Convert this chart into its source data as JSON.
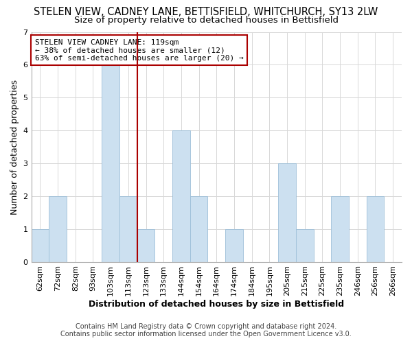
{
  "title": "STELEN VIEW, CADNEY LANE, BETTISFIELD, WHITCHURCH, SY13 2LW",
  "subtitle": "Size of property relative to detached houses in Bettisfield",
  "xlabel": "Distribution of detached houses by size in Bettisfield",
  "ylabel": "Number of detached properties",
  "bar_color": "#cce0f0",
  "bar_edgecolor": "#9dbfd8",
  "categories": [
    "62sqm",
    "72sqm",
    "82sqm",
    "93sqm",
    "103sqm",
    "113sqm",
    "123sqm",
    "133sqm",
    "144sqm",
    "154sqm",
    "164sqm",
    "174sqm",
    "184sqm",
    "195sqm",
    "205sqm",
    "215sqm",
    "225sqm",
    "235sqm",
    "246sqm",
    "256sqm",
    "266sqm"
  ],
  "values": [
    1,
    2,
    0,
    0,
    6,
    2,
    1,
    0,
    4,
    2,
    0,
    1,
    0,
    0,
    3,
    1,
    0,
    2,
    0,
    2,
    0
  ],
  "ylim": [
    0,
    7
  ],
  "yticks": [
    0,
    1,
    2,
    3,
    4,
    5,
    6,
    7
  ],
  "annotation_title": "STELEN VIEW CADNEY LANE: 119sqm",
  "annotation_line1": "← 38% of detached houses are smaller (12)",
  "annotation_line2": "63% of semi-detached houses are larger (20) →",
  "footer_line1": "Contains HM Land Registry data © Crown copyright and database right 2024.",
  "footer_line2": "Contains public sector information licensed under the Open Government Licence v3.0.",
  "grid_color": "#d8d8d8",
  "annotation_box_edgecolor": "#aa0000",
  "property_line_color": "#aa0000",
  "title_fontsize": 10.5,
  "subtitle_fontsize": 9.5,
  "label_fontsize": 9,
  "tick_fontsize": 8,
  "footer_fontsize": 7,
  "annotation_fontsize": 8
}
